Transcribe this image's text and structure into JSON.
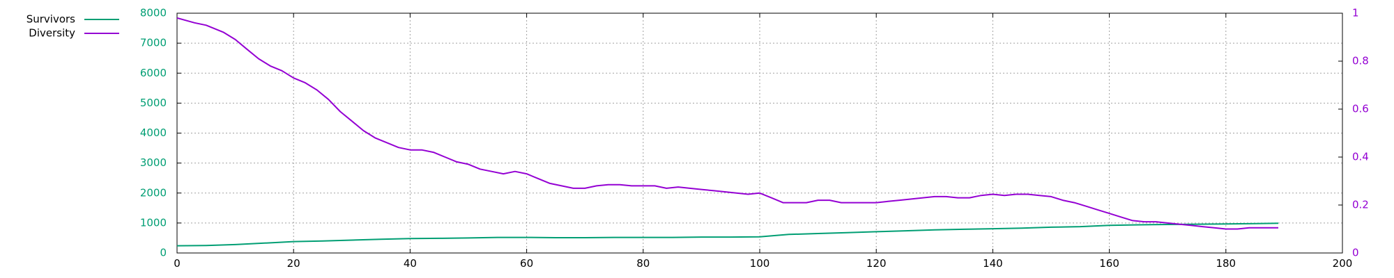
{
  "chart_data": {
    "type": "line",
    "title": "",
    "xlabel": "",
    "ylabel": "",
    "y2label": "",
    "xlim": [
      0,
      200
    ],
    "ylim": [
      0,
      8000
    ],
    "y2lim": [
      0,
      1
    ],
    "x_ticks": [
      "0",
      "20",
      "40",
      "60",
      "80",
      "100",
      "120",
      "140",
      "160",
      "180",
      "200"
    ],
    "y_ticks": [
      "0",
      "1000",
      "2000",
      "3000",
      "4000",
      "5000",
      "6000",
      "7000",
      "8000"
    ],
    "y2_ticks": [
      "0",
      "0.2",
      "0.4",
      "0.6",
      "0.8",
      "1"
    ],
    "grid": true,
    "legend_position": "top-left outside",
    "series": [
      {
        "name": "Survivors",
        "axis": "left",
        "color": "#009e73",
        "x": [
          0,
          5,
          10,
          15,
          20,
          25,
          30,
          35,
          40,
          45,
          50,
          55,
          60,
          65,
          70,
          75,
          80,
          85,
          90,
          95,
          100,
          105,
          110,
          115,
          120,
          125,
          130,
          135,
          140,
          145,
          150,
          155,
          160,
          165,
          170,
          175,
          180,
          185,
          189
        ],
        "values": [
          240,
          250,
          280,
          330,
          380,
          400,
          430,
          460,
          480,
          490,
          500,
          520,
          520,
          510,
          510,
          520,
          520,
          520,
          530,
          530,
          540,
          620,
          650,
          680,
          710,
          740,
          770,
          790,
          810,
          830,
          860,
          880,
          920,
          940,
          950,
          960,
          970,
          980,
          990
        ]
      },
      {
        "name": "Diversity",
        "axis": "right",
        "color": "#9400d3",
        "x": [
          0,
          3,
          5,
          8,
          10,
          12,
          14,
          16,
          18,
          20,
          22,
          24,
          26,
          28,
          30,
          32,
          34,
          36,
          38,
          40,
          42,
          44,
          46,
          48,
          50,
          52,
          54,
          56,
          58,
          60,
          62,
          64,
          66,
          68,
          70,
          72,
          74,
          76,
          78,
          80,
          82,
          84,
          86,
          88,
          90,
          92,
          94,
          96,
          98,
          100,
          102,
          104,
          106,
          108,
          110,
          112,
          114,
          116,
          118,
          120,
          122,
          124,
          126,
          128,
          130,
          132,
          134,
          136,
          138,
          140,
          142,
          144,
          146,
          148,
          150,
          152,
          154,
          156,
          158,
          160,
          162,
          164,
          166,
          168,
          170,
          172,
          174,
          176,
          178,
          180,
          182,
          184,
          186,
          189
        ],
        "values": [
          0.98,
          0.96,
          0.95,
          0.92,
          0.89,
          0.85,
          0.81,
          0.78,
          0.76,
          0.73,
          0.71,
          0.68,
          0.64,
          0.59,
          0.55,
          0.51,
          0.48,
          0.46,
          0.44,
          0.43,
          0.43,
          0.42,
          0.4,
          0.38,
          0.37,
          0.35,
          0.34,
          0.33,
          0.34,
          0.33,
          0.31,
          0.29,
          0.28,
          0.27,
          0.27,
          0.28,
          0.285,
          0.285,
          0.28,
          0.28,
          0.28,
          0.27,
          0.275,
          0.27,
          0.265,
          0.26,
          0.255,
          0.25,
          0.245,
          0.25,
          0.23,
          0.21,
          0.21,
          0.21,
          0.22,
          0.22,
          0.21,
          0.21,
          0.21,
          0.21,
          0.215,
          0.22,
          0.225,
          0.23,
          0.235,
          0.235,
          0.23,
          0.23,
          0.24,
          0.245,
          0.24,
          0.245,
          0.245,
          0.24,
          0.235,
          0.22,
          0.21,
          0.195,
          0.18,
          0.165,
          0.15,
          0.135,
          0.13,
          0.13,
          0.125,
          0.12,
          0.115,
          0.11,
          0.105,
          0.1,
          0.1,
          0.105,
          0.105,
          0.105
        ]
      }
    ]
  }
}
